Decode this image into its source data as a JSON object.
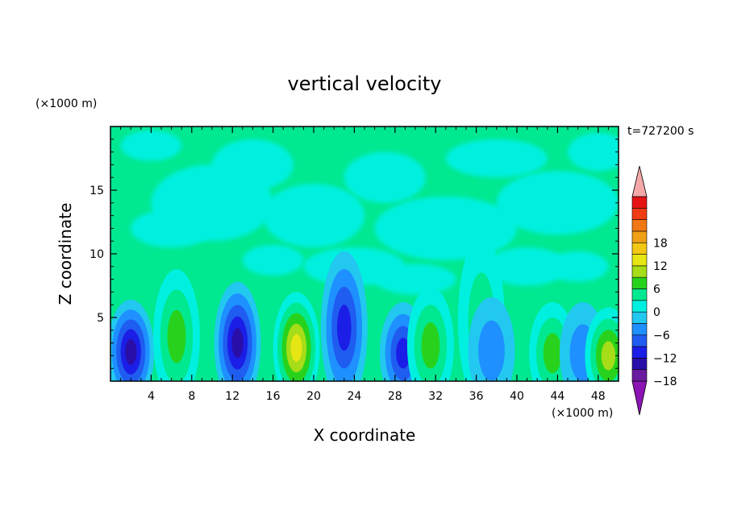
{
  "chart_data": {
    "type": "heatmap",
    "title": "vertical velocity",
    "xlabel": "X coordinate",
    "ylabel": "Z coordinate",
    "x_unit": "(×1000 m)",
    "y_unit": "(×1000 m)",
    "time_label": "t=727200 s",
    "xlim": [
      0,
      50
    ],
    "ylim": [
      0,
      20
    ],
    "x_ticks": [
      4,
      8,
      12,
      16,
      20,
      24,
      28,
      32,
      36,
      40,
      44,
      48
    ],
    "y_ticks": [
      5,
      10,
      15
    ],
    "colorbar": {
      "min": -21,
      "max": 21,
      "step": 3,
      "tick_values": [
        -18,
        -12,
        -6,
        0,
        6,
        12,
        18
      ],
      "tick_labels": [
        "−18",
        "−12",
        "−6",
        "0",
        "6",
        "12",
        "18"
      ],
      "colors": [
        "#6a1ba0",
        "#2a0ea8",
        "#1b1ee6",
        "#1f5cf0",
        "#1e90ff",
        "#22c8f0",
        "#00f0e0",
        "#00e890",
        "#28d21c",
        "#a6dc18",
        "#e6e614",
        "#f2c814",
        "#f0a014",
        "#f07814",
        "#f03c14",
        "#e61414"
      ],
      "under_color": "#8b14b4",
      "over_color": "#f4a8a8"
    },
    "features": [
      {
        "x": 2.0,
        "z": 2.3,
        "w": -12
      },
      {
        "x": 6.5,
        "z": 3.5,
        "w": 6
      },
      {
        "x": 12.5,
        "z": 3.0,
        "w": -12
      },
      {
        "x": 18.3,
        "z": 2.6,
        "w": 12
      },
      {
        "x": 23.0,
        "z": 4.2,
        "w": -9
      },
      {
        "x": 28.8,
        "z": 2.2,
        "w": -9
      },
      {
        "x": 31.5,
        "z": 2.8,
        "w": 6
      },
      {
        "x": 36.5,
        "z": 4.8,
        "w": 3
      },
      {
        "x": 37.5,
        "z": 2.4,
        "w": -3
      },
      {
        "x": 43.5,
        "z": 2.2,
        "w": 6
      },
      {
        "x": 46.5,
        "z": 2.2,
        "w": -3
      },
      {
        "x": 49.0,
        "z": 2.0,
        "w": 9
      }
    ]
  }
}
